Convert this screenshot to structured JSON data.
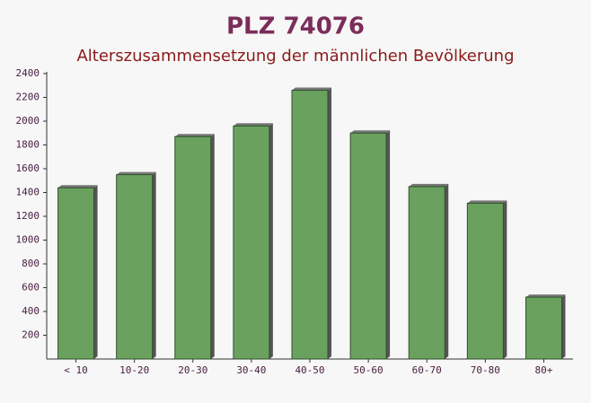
{
  "chart_data": {
    "type": "bar",
    "title": "PLZ 74076",
    "subtitle": "Alterszusammensetzung der männlichen Bevölkerung",
    "categories": [
      "< 10",
      "10-20",
      "20-30",
      "30-40",
      "40-50",
      "50-60",
      "60-70",
      "70-80",
      "80+"
    ],
    "values": [
      1440,
      1550,
      1870,
      1960,
      2260,
      1900,
      1450,
      1310,
      520
    ],
    "color": "#6aa15f",
    "ylim": [
      0,
      2400
    ],
    "yticks": [
      200,
      400,
      600,
      800,
      1000,
      1200,
      1400,
      1600,
      1800,
      2000,
      2200,
      2400
    ]
  }
}
